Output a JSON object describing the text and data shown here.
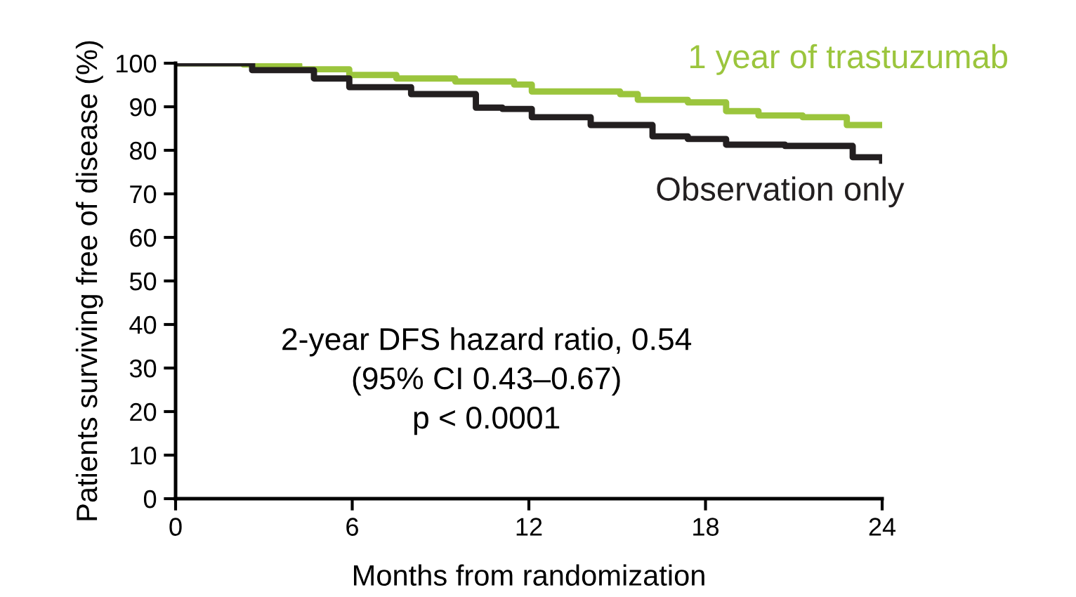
{
  "chart_data": {
    "type": "step",
    "xlabel": "Months from randomization",
    "ylabel": "Patients surviving free of disease (%)",
    "xlim": [
      0,
      24
    ],
    "ylim": [
      0,
      100
    ],
    "xticks": [
      0,
      6,
      12,
      18,
      24
    ],
    "yticks": [
      0,
      10,
      20,
      30,
      40,
      50,
      60,
      70,
      80,
      90,
      100
    ],
    "grid": false,
    "legend": false,
    "marker": "none",
    "line_style": "solid",
    "series": [
      {
        "name": "1 year of trastuzumab",
        "color": "#9bc53d",
        "x": [
          0,
          2.3,
          4.2,
          5.9,
          7.5,
          9.5,
          11.5,
          12.1,
          15.1,
          15.7,
          17.4,
          18.7,
          19.8,
          21.3,
          22.8,
          24
        ],
        "values": [
          100,
          99.7,
          98.6,
          97.3,
          96.5,
          95.8,
          95.1,
          93.5,
          92.9,
          91.6,
          91,
          89,
          88,
          87.6,
          85.8,
          85.8
        ]
      },
      {
        "name": "Observation only",
        "color": "#231f20",
        "x": [
          0,
          1.6,
          2.6,
          4.7,
          5.9,
          8,
          10.2,
          11.1,
          12.1,
          14.1,
          16.2,
          17.4,
          18.7,
          20.7,
          23,
          24
        ],
        "values": [
          100,
          100,
          98.4,
          96.5,
          94.5,
          92.9,
          89.8,
          89.5,
          87.6,
          85.8,
          83.2,
          82.6,
          81.3,
          81,
          78.4,
          77.6
        ]
      }
    ],
    "annotations": [
      "2-year DFS hazard ratio, 0.54\n(95% CI 0.43–0.67)\np < 0.0001"
    ]
  }
}
